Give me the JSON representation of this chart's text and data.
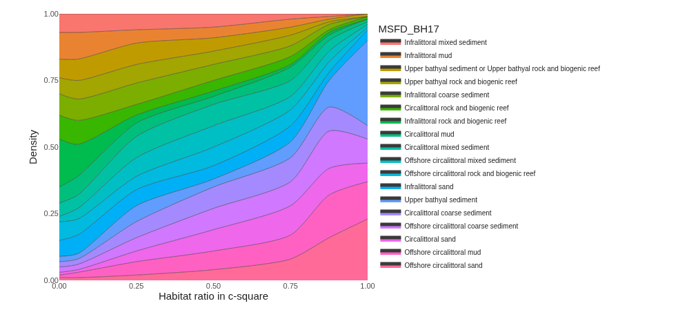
{
  "chart_data": {
    "type": "area",
    "stacked": true,
    "xlabel": "Habitat ratio in c-square",
    "ylabel": "Density",
    "legend_title": "MSFD_BH17",
    "legend": "right",
    "x": [
      0,
      0.06,
      0.25,
      0.5,
      0.75,
      0.875,
      1
    ],
    "xlim": [
      0,
      1
    ],
    "ylim": [
      0,
      1
    ],
    "xticks": [
      {
        "value": 0,
        "label": "0.00"
      },
      {
        "value": 0.25,
        "label": "0.25"
      },
      {
        "value": 0.5,
        "label": "0.50"
      },
      {
        "value": 0.75,
        "label": "0.75"
      },
      {
        "value": 1,
        "label": "1.00"
      }
    ],
    "yticks": [
      {
        "value": 0,
        "label": "0.00"
      },
      {
        "value": 0.25,
        "label": "0.25"
      },
      {
        "value": 0.5,
        "label": "0.50"
      },
      {
        "value": 0.75,
        "label": "0.75"
      },
      {
        "value": 1,
        "label": "1.00"
      }
    ],
    "series": [
      {
        "name": "Offshore circalittoral sand",
        "color": "#ff6a98",
        "values": [
          0.01,
          0.01,
          0.02,
          0.04,
          0.08,
          0.16,
          0.23
        ]
      },
      {
        "name": "Offshore circalittoral mud",
        "color": "#ff61c3",
        "values": [
          0.01,
          0.02,
          0.05,
          0.07,
          0.09,
          0.16,
          0.14
        ]
      },
      {
        "name": "Circalittoral sand",
        "color": "#ef67eb",
        "values": [
          0.01,
          0.01,
          0.04,
          0.08,
          0.11,
          0.1,
          0.07
        ]
      },
      {
        "name": "Offshore circalittoral coarse sediment",
        "color": "#d078ff",
        "values": [
          0.02,
          0.02,
          0.05,
          0.08,
          0.09,
          0.14,
          0.09
        ]
      },
      {
        "name": "Circalittoral coarse sediment",
        "color": "#a58aff",
        "values": [
          0.02,
          0.02,
          0.06,
          0.08,
          0.09,
          0.09,
          0.05
        ]
      },
      {
        "name": "Upper bathyal sediment",
        "color": "#619cff",
        "values": [
          0.02,
          0.02,
          0.06,
          0.03,
          0.06,
          0.1,
          0.32
        ]
      },
      {
        "name": "Infralittoral sand",
        "color": "#00b0f6",
        "values": [
          0.06,
          0.07,
          0.06,
          0.05,
          0.06,
          0.03,
          0.04
        ]
      },
      {
        "name": "Offshore circalittoral rock and biogenic reef",
        "color": "#00bae0",
        "values": [
          0.07,
          0.06,
          0.05,
          0.07,
          0.06,
          0.04,
          0.01
        ]
      },
      {
        "name": "Offshore circalittoral mixed sediment",
        "color": "#00bfc4",
        "values": [
          0.02,
          0.04,
          0.07,
          0.08,
          0.05,
          0.04,
          0.01
        ]
      },
      {
        "name": "Circalittoral mixed sediment",
        "color": "#00c1a3",
        "values": [
          0.05,
          0.05,
          0.08,
          0.08,
          0.06,
          0.04,
          0.01
        ]
      },
      {
        "name": "Circalittoral mud",
        "color": "#00bf7d",
        "values": [
          0.06,
          0.07,
          0.05,
          0.03,
          0.05,
          0.02,
          0.01
        ]
      },
      {
        "name": "Infralittoral rock and biogenic reef",
        "color": "#00bb4e",
        "values": [
          0.18,
          0.12,
          0.03,
          0.02,
          0.01,
          0.01,
          0
        ]
      },
      {
        "name": "Circalittoral rock and biogenic reef",
        "color": "#39b600",
        "values": [
          0.09,
          0.09,
          0.04,
          0.04,
          0.03,
          0.01,
          0.01
        ]
      },
      {
        "name": "Infralittoral coarse sediment",
        "color": "#7cae00",
        "values": [
          0.08,
          0.08,
          0.08,
          0.06,
          0.04,
          0.02,
          0
        ]
      },
      {
        "name": "Upper bathyal rock and biogenic reef",
        "color": "#a3a500",
        "values": [
          0.06,
          0.07,
          0.07,
          0.05,
          0.04,
          0.01,
          0
        ]
      },
      {
        "name": "Upper bathyal sediment or Upper bathyal rock and biogenic reef",
        "color": "#c09b00",
        "values": [
          0.07,
          0.08,
          0.08,
          0.05,
          0.03,
          0.01,
          0.01
        ]
      },
      {
        "name": "Infralittoral mud",
        "color": "#ea8331",
        "values": [
          0.1,
          0.1,
          0.05,
          0.04,
          0.03,
          0.01,
          0
        ]
      },
      {
        "name": "Infralittoral mixed sediment",
        "color": "#f8766d",
        "values": [
          0.07,
          0.07,
          0.06,
          0.05,
          0.02,
          0.01,
          0
        ]
      }
    ]
  }
}
